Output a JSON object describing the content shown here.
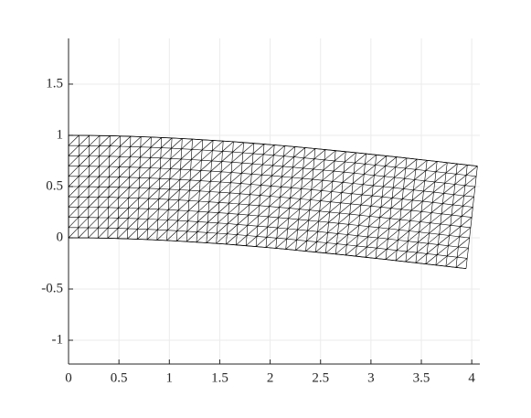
{
  "chart_data": {
    "type": "mesh",
    "edges": {
      "bottom": {
        "x": [
          0,
          0.195,
          0.389,
          0.584,
          0.78,
          0.975,
          1.171,
          1.368,
          1.564,
          1.761,
          1.958,
          2.155,
          2.353,
          2.551,
          2.749,
          2.947,
          3.146,
          3.345,
          3.544,
          3.744,
          3.944
        ],
        "y": [
          0,
          -0.001,
          -0.004,
          -0.01,
          -0.017,
          -0.026,
          -0.037,
          -0.049,
          -0.062,
          -0.078,
          -0.094,
          -0.111,
          -0.13,
          -0.149,
          -0.169,
          -0.19,
          -0.211,
          -0.233,
          -0.255,
          -0.278,
          -0.3
        ]
      },
      "top": {
        "x": [
          0,
          0.206,
          0.411,
          0.616,
          0.82,
          1.025,
          1.229,
          1.433,
          1.636,
          1.839,
          2.042,
          2.245,
          2.447,
          2.649,
          2.851,
          3.053,
          3.254,
          3.455,
          3.656,
          3.856,
          4.056
        ],
        "y": [
          1,
          0.999,
          0.996,
          0.99,
          0.983,
          0.974,
          0.963,
          0.951,
          0.938,
          0.922,
          0.906,
          0.889,
          0.87,
          0.851,
          0.831,
          0.81,
          0.789,
          0.767,
          0.745,
          0.722,
          0.7
        ]
      }
    },
    "color": "#000000",
    "xlim": [
      0,
      4.08
    ],
    "ylim": [
      -1.232,
      1.946
    ],
    "xticks": [
      0,
      0.5,
      1,
      1.5,
      2,
      2.5,
      3,
      3.5,
      4
    ],
    "yticks": [
      -1,
      -0.5,
      0,
      0.5,
      1,
      1.5
    ],
    "grid": true
  }
}
